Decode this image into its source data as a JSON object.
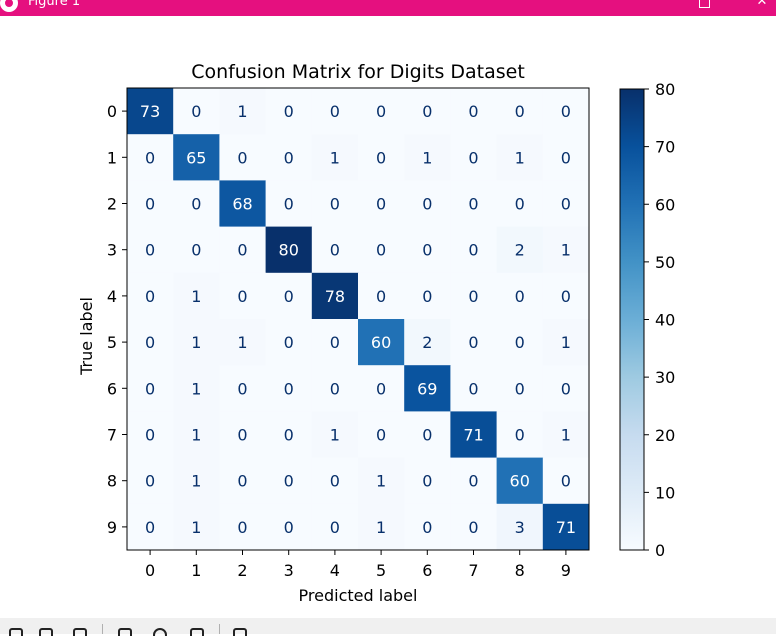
{
  "window": {
    "title": "Figure 1",
    "app_icon": "app-logo-icon",
    "maximize_icon": "maximize-icon",
    "close_glyph": "✕",
    "accent_color": "#e5107f"
  },
  "toolbar": {
    "tools": [
      "home-icon",
      "back-icon",
      "forward-icon",
      "pan-icon",
      "zoom-icon",
      "configure-subplots-icon",
      "save-icon"
    ]
  },
  "chart_data": {
    "type": "heatmap",
    "title": "Confusion Matrix for Digits Dataset",
    "xlabel": "Predicted label",
    "ylabel": "True label",
    "x_categories": [
      "0",
      "1",
      "2",
      "3",
      "4",
      "5",
      "6",
      "7",
      "8",
      "9"
    ],
    "y_categories": [
      "0",
      "1",
      "2",
      "3",
      "4",
      "5",
      "6",
      "7",
      "8",
      "9"
    ],
    "matrix": [
      [
        73,
        0,
        1,
        0,
        0,
        0,
        0,
        0,
        0,
        0
      ],
      [
        0,
        65,
        0,
        0,
        1,
        0,
        1,
        0,
        1,
        0
      ],
      [
        0,
        0,
        68,
        0,
        0,
        0,
        0,
        0,
        0,
        0
      ],
      [
        0,
        0,
        0,
        80,
        0,
        0,
        0,
        0,
        2,
        1
      ],
      [
        0,
        1,
        0,
        0,
        78,
        0,
        0,
        0,
        0,
        0
      ],
      [
        0,
        1,
        1,
        0,
        0,
        60,
        2,
        0,
        0,
        1
      ],
      [
        0,
        1,
        0,
        0,
        0,
        0,
        69,
        0,
        0,
        0
      ],
      [
        0,
        1,
        0,
        0,
        1,
        0,
        0,
        71,
        0,
        1
      ],
      [
        0,
        1,
        0,
        0,
        0,
        1,
        0,
        0,
        60,
        0
      ],
      [
        0,
        1,
        0,
        0,
        0,
        1,
        0,
        0,
        3,
        71
      ]
    ],
    "colormap": "Blues",
    "colorbar": {
      "range": [
        0,
        80
      ],
      "ticks": [
        "0",
        "10",
        "20",
        "30",
        "40",
        "50",
        "60",
        "70",
        "80"
      ]
    },
    "grid": false
  }
}
